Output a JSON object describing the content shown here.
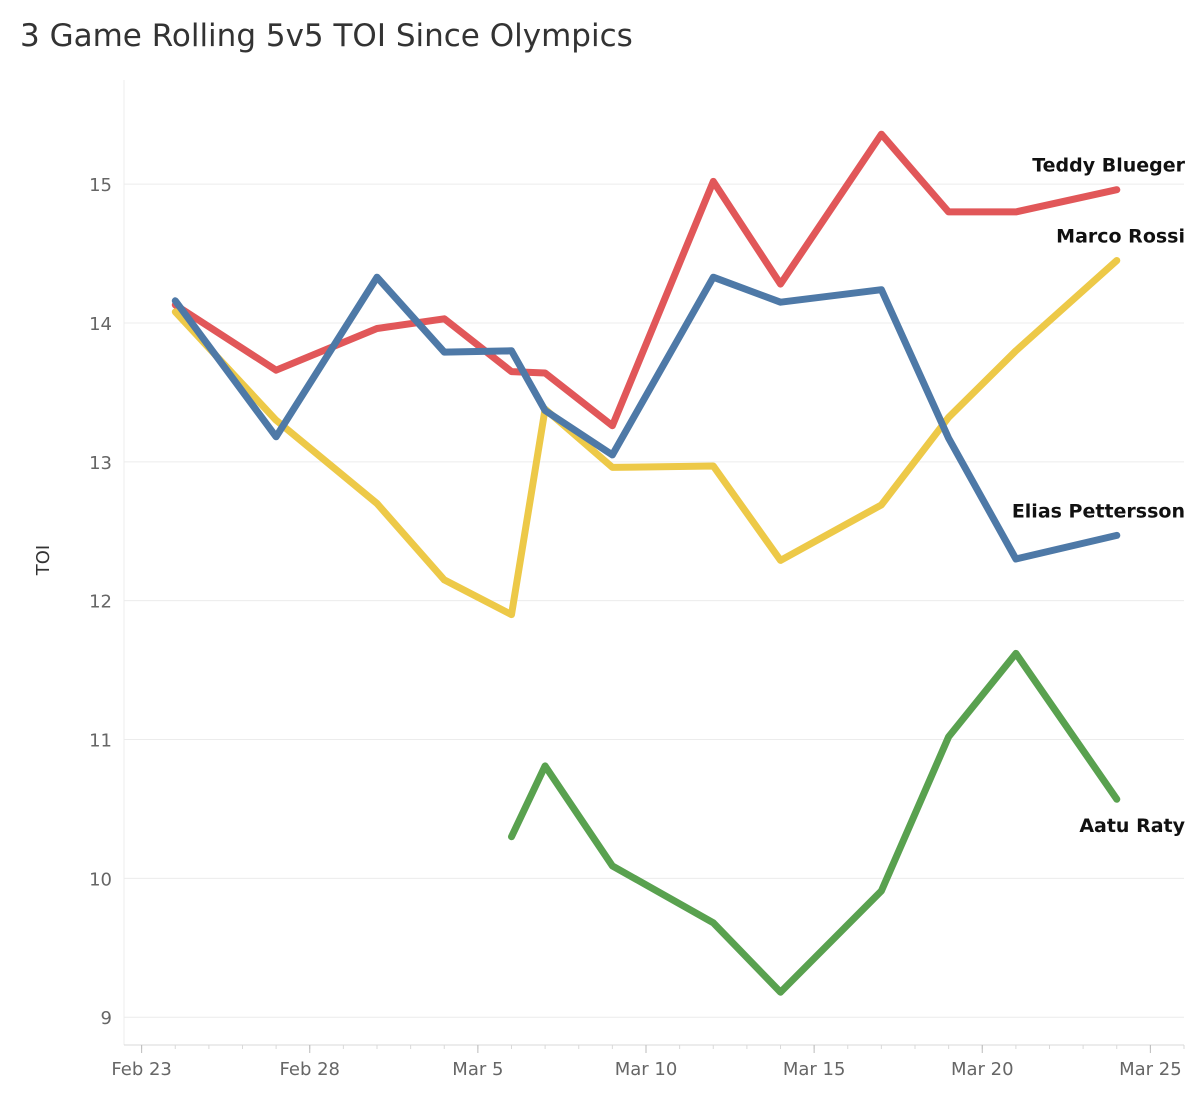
{
  "chart_data": {
    "type": "line",
    "title": "3 Game Rolling 5v5 TOI Since Olympics",
    "ylabel": "TOI",
    "xlabel": "",
    "ylim": [
      8.8,
      15.75
    ],
    "yticks": [
      9,
      10,
      11,
      12,
      13,
      14,
      15
    ],
    "xlim": [
      "2018-02-22",
      "2018-03-26"
    ],
    "xticks": [
      {
        "date": "2018-02-23",
        "label": "Feb 23"
      },
      {
        "date": "2018-02-28",
        "label": "Feb 28"
      },
      {
        "date": "2018-03-05",
        "label": "Mar 5"
      },
      {
        "date": "2018-03-10",
        "label": "Mar 10"
      },
      {
        "date": "2018-03-15",
        "label": "Mar 15"
      },
      {
        "date": "2018-03-20",
        "label": "Mar 20"
      },
      {
        "date": "2018-03-25",
        "label": "Mar 25"
      }
    ],
    "grid": true,
    "legend": "direct-labels-right",
    "series": [
      {
        "name": "Teddy Blueger",
        "color": "#e15759",
        "points": [
          [
            "2018-02-24",
            14.13
          ],
          [
            "2018-02-27",
            13.66
          ],
          [
            "2018-03-02",
            13.96
          ],
          [
            "2018-03-04",
            14.03
          ],
          [
            "2018-03-06",
            13.65
          ],
          [
            "2018-03-07",
            13.64
          ],
          [
            "2018-03-09",
            13.26
          ],
          [
            "2018-03-12",
            15.02
          ],
          [
            "2018-03-14",
            14.28
          ],
          [
            "2018-03-17",
            15.36
          ],
          [
            "2018-03-19",
            14.8
          ],
          [
            "2018-03-21",
            14.8
          ],
          [
            "2018-03-24",
            14.96
          ]
        ]
      },
      {
        "name": "Marco Rossi",
        "color": "#edc948",
        "points": [
          [
            "2018-02-24",
            14.08
          ],
          [
            "2018-02-27",
            13.3
          ],
          [
            "2018-03-02",
            12.7
          ],
          [
            "2018-03-04",
            12.15
          ],
          [
            "2018-03-06",
            11.9
          ],
          [
            "2018-03-07",
            13.38
          ],
          [
            "2018-03-09",
            12.96
          ],
          [
            "2018-03-12",
            12.97
          ],
          [
            "2018-03-14",
            12.29
          ],
          [
            "2018-03-17",
            12.69
          ],
          [
            "2018-03-19",
            13.32
          ],
          [
            "2018-03-21",
            13.8
          ],
          [
            "2018-03-24",
            14.45
          ]
        ]
      },
      {
        "name": "Elias Pettersson",
        "color": "#4e79a7",
        "points": [
          [
            "2018-02-24",
            14.16
          ],
          [
            "2018-02-27",
            13.18
          ],
          [
            "2018-03-02",
            14.33
          ],
          [
            "2018-03-04",
            13.79
          ],
          [
            "2018-03-06",
            13.8
          ],
          [
            "2018-03-07",
            13.37
          ],
          [
            "2018-03-09",
            13.05
          ],
          [
            "2018-03-12",
            14.33
          ],
          [
            "2018-03-14",
            14.15
          ],
          [
            "2018-03-17",
            14.24
          ],
          [
            "2018-03-19",
            13.17
          ],
          [
            "2018-03-21",
            12.3
          ],
          [
            "2018-03-24",
            12.47
          ]
        ]
      },
      {
        "name": "Aatu Raty",
        "color": "#59a14f",
        "points": [
          [
            "2018-03-06",
            10.3
          ],
          [
            "2018-03-07",
            10.81
          ],
          [
            "2018-03-09",
            10.09
          ],
          [
            "2018-03-12",
            9.68
          ],
          [
            "2018-03-14",
            9.18
          ],
          [
            "2018-03-17",
            9.91
          ],
          [
            "2018-03-19",
            11.02
          ],
          [
            "2018-03-21",
            11.62
          ],
          [
            "2018-03-24",
            10.57
          ]
        ]
      }
    ]
  }
}
